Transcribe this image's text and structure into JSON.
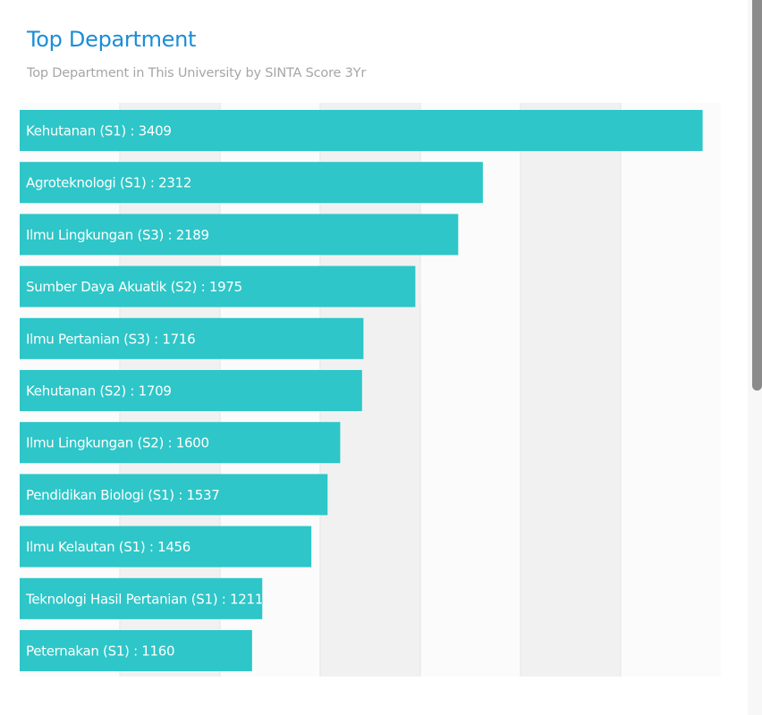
{
  "header": {
    "title": "Top Department",
    "subtitle": "Top Department in This University by SINTA Score 3Yr"
  },
  "colors": {
    "bar": "#2ec6c8",
    "title": "#1a8ed6",
    "subtitle": "#a6a6a6",
    "band_dark": "#f1f1f1",
    "band_light": "#fbfbfb"
  },
  "chart_data": {
    "type": "bar",
    "orientation": "horizontal",
    "title": "Top Department",
    "subtitle": "Top Department in This University by SINTA Score 3Yr",
    "xlabel": "",
    "ylabel": "",
    "xlim": [
      0,
      3500
    ],
    "grid": true,
    "grid_interval": 500,
    "legend": "none",
    "categories": [
      "Kehutanan (S1)",
      "Agroteknologi (S1)",
      "Ilmu Lingkungan (S3)",
      "Sumber Daya Akuatik (S2)",
      "Ilmu Pertanian (S3)",
      "Kehutanan (S2)",
      "Ilmu Lingkungan (S2)",
      "Pendidikan Biologi (S1)",
      "Ilmu Kelautan (S1)",
      "Teknologi Hasil Pertanian (S1)",
      "Peternakan (S1)"
    ],
    "values": [
      3409,
      2312,
      2189,
      1975,
      1716,
      1709,
      1600,
      1537,
      1456,
      1211,
      1160
    ],
    "label_format": "{category} : {value}"
  }
}
